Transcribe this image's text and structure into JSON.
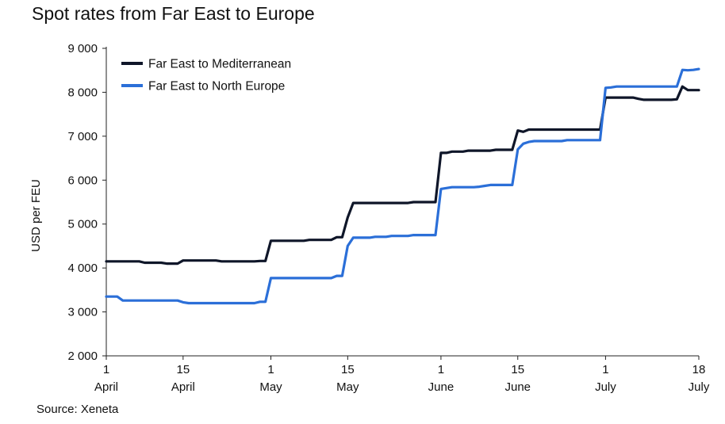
{
  "chart_data": {
    "type": "line",
    "title": "Spot rates from Far East to Europe",
    "ylabel": "USD per FEU",
    "xlabel": "",
    "ylim": [
      2000,
      9000
    ],
    "yticks": [
      2000,
      3000,
      4000,
      5000,
      6000,
      7000,
      8000,
      9000
    ],
    "ytick_labels": [
      "2 000",
      "3 000",
      "4 000",
      "5 000",
      "6 000",
      "7 000",
      "8 000",
      "9 000"
    ],
    "xlim": [
      "2024-04-01",
      "2024-07-18"
    ],
    "xticks": [
      {
        "date": "2024-04-01",
        "line1": "1",
        "line2": "April"
      },
      {
        "date": "2024-04-15",
        "line1": "15",
        "line2": "April"
      },
      {
        "date": "2024-05-01",
        "line1": "1",
        "line2": "May"
      },
      {
        "date": "2024-05-15",
        "line1": "15",
        "line2": "May"
      },
      {
        "date": "2024-06-01",
        "line1": "1",
        "line2": "June"
      },
      {
        "date": "2024-06-15",
        "line1": "15",
        "line2": "June"
      },
      {
        "date": "2024-07-01",
        "line1": "1",
        "line2": "July"
      },
      {
        "date": "2024-07-18",
        "line1": "18",
        "line2": "July"
      }
    ],
    "grid": false,
    "legend_position": "top-left",
    "series": [
      {
        "name": "Far East to Mediterranean",
        "color": "#0f1629",
        "points": [
          [
            "2024-04-01",
            4150
          ],
          [
            "2024-04-07",
            4150
          ],
          [
            "2024-04-08",
            4120
          ],
          [
            "2024-04-11",
            4120
          ],
          [
            "2024-04-12",
            4100
          ],
          [
            "2024-04-14",
            4100
          ],
          [
            "2024-04-15",
            4170
          ],
          [
            "2024-04-21",
            4170
          ],
          [
            "2024-04-22",
            4150
          ],
          [
            "2024-04-28",
            4150
          ],
          [
            "2024-04-29",
            4160
          ],
          [
            "2024-04-30",
            4160
          ],
          [
            "2024-05-01",
            4620
          ],
          [
            "2024-05-07",
            4620
          ],
          [
            "2024-05-08",
            4640
          ],
          [
            "2024-05-12",
            4640
          ],
          [
            "2024-05-13",
            4700
          ],
          [
            "2024-05-14",
            4700
          ],
          [
            "2024-05-15",
            5150
          ],
          [
            "2024-05-16",
            5480
          ],
          [
            "2024-05-26",
            5480
          ],
          [
            "2024-05-27",
            5500
          ],
          [
            "2024-05-31",
            5500
          ],
          [
            "2024-06-01",
            6620
          ],
          [
            "2024-06-02",
            6620
          ],
          [
            "2024-06-03",
            6650
          ],
          [
            "2024-06-05",
            6650
          ],
          [
            "2024-06-06",
            6670
          ],
          [
            "2024-06-10",
            6670
          ],
          [
            "2024-06-11",
            6690
          ],
          [
            "2024-06-14",
            6690
          ],
          [
            "2024-06-15",
            7130
          ],
          [
            "2024-06-16",
            7100
          ],
          [
            "2024-06-17",
            7150
          ],
          [
            "2024-06-30",
            7150
          ],
          [
            "2024-07-01",
            7880
          ],
          [
            "2024-07-06",
            7880
          ],
          [
            "2024-07-07",
            7850
          ],
          [
            "2024-07-08",
            7830
          ],
          [
            "2024-07-13",
            7830
          ],
          [
            "2024-07-14",
            7840
          ],
          [
            "2024-07-15",
            8130
          ],
          [
            "2024-07-16",
            8050
          ],
          [
            "2024-07-18",
            8050
          ]
        ]
      },
      {
        "name": "Far East to North Europe",
        "color": "#2b6fd8",
        "points": [
          [
            "2024-04-01",
            3350
          ],
          [
            "2024-04-03",
            3350
          ],
          [
            "2024-04-04",
            3260
          ],
          [
            "2024-04-14",
            3260
          ],
          [
            "2024-04-15",
            3220
          ],
          [
            "2024-04-16",
            3200
          ],
          [
            "2024-04-28",
            3200
          ],
          [
            "2024-04-29",
            3230
          ],
          [
            "2024-04-30",
            3230
          ],
          [
            "2024-05-01",
            3770
          ],
          [
            "2024-05-12",
            3770
          ],
          [
            "2024-05-13",
            3820
          ],
          [
            "2024-05-14",
            3820
          ],
          [
            "2024-05-15",
            4500
          ],
          [
            "2024-05-16",
            4690
          ],
          [
            "2024-05-19",
            4690
          ],
          [
            "2024-05-20",
            4710
          ],
          [
            "2024-05-22",
            4710
          ],
          [
            "2024-05-23",
            4730
          ],
          [
            "2024-05-26",
            4730
          ],
          [
            "2024-05-27",
            4750
          ],
          [
            "2024-05-31",
            4750
          ],
          [
            "2024-06-01",
            5800
          ],
          [
            "2024-06-02",
            5820
          ],
          [
            "2024-06-03",
            5840
          ],
          [
            "2024-06-07",
            5840
          ],
          [
            "2024-06-08",
            5850
          ],
          [
            "2024-06-09",
            5870
          ],
          [
            "2024-06-10",
            5890
          ],
          [
            "2024-06-14",
            5890
          ],
          [
            "2024-06-15",
            6700
          ],
          [
            "2024-06-16",
            6830
          ],
          [
            "2024-06-17",
            6870
          ],
          [
            "2024-06-18",
            6890
          ],
          [
            "2024-06-23",
            6890
          ],
          [
            "2024-06-24",
            6910
          ],
          [
            "2024-06-30",
            6910
          ],
          [
            "2024-07-01",
            8100
          ],
          [
            "2024-07-02",
            8110
          ],
          [
            "2024-07-03",
            8130
          ],
          [
            "2024-07-14",
            8130
          ],
          [
            "2024-07-15",
            8510
          ],
          [
            "2024-07-16",
            8500
          ],
          [
            "2024-07-17",
            8510
          ],
          [
            "2024-07-18",
            8530
          ]
        ]
      }
    ]
  },
  "source": "Source: Xeneta"
}
